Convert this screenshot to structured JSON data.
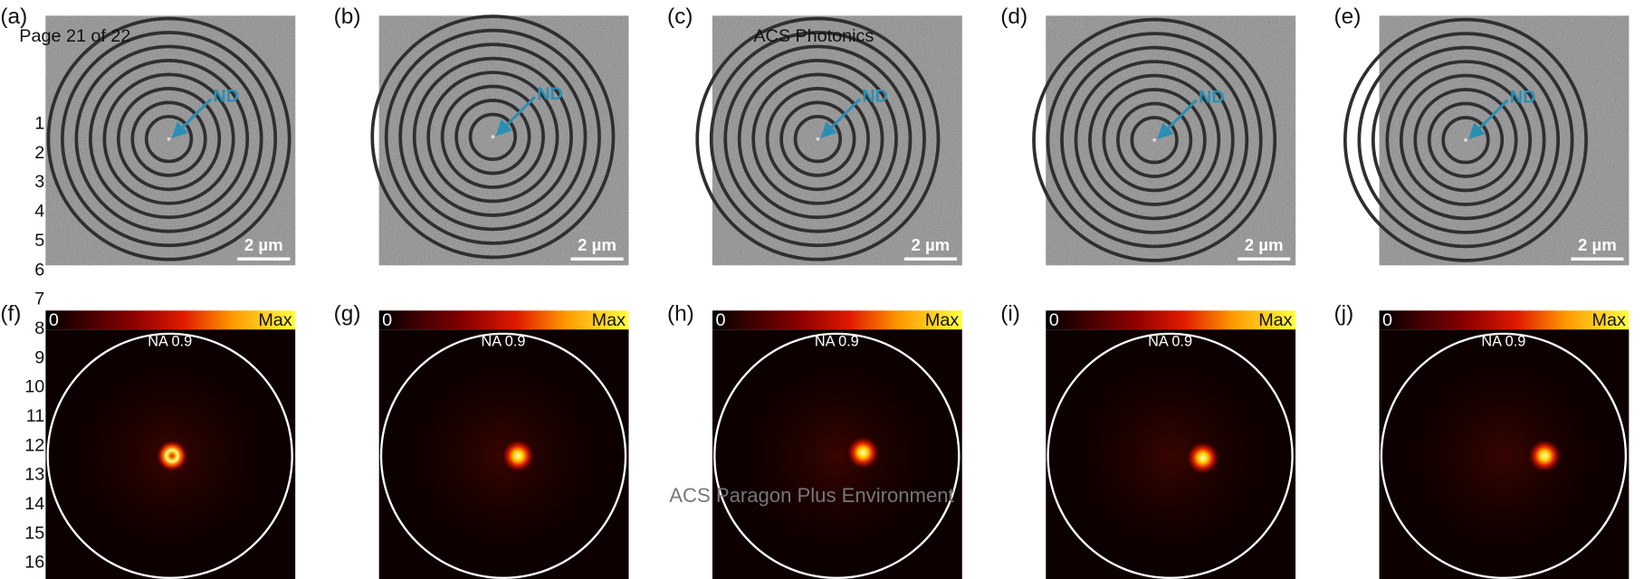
{
  "header": {
    "page": "Page 21 of 22",
    "journal": "ACS Photonics"
  },
  "footer": "ACS Paragon Plus Environment",
  "line_numbers": [
    "1",
    "2",
    "3",
    "4",
    "5",
    "6",
    "7",
    "8",
    "9",
    "10",
    "11",
    "12",
    "13",
    "14",
    "15",
    "16"
  ],
  "top_panels": [
    {
      "label": "(a)",
      "annotation": "ND",
      "scale_bar": "2 µm"
    },
    {
      "label": "(b)",
      "annotation": "ND",
      "scale_bar": "2 µm"
    },
    {
      "label": "(c)",
      "annotation": "ND",
      "scale_bar": "2 µm"
    },
    {
      "label": "(d)",
      "annotation": "ND",
      "scale_bar": "2 µm"
    },
    {
      "label": "(e)",
      "annotation": "ND",
      "scale_bar": "2 µm"
    }
  ],
  "bottom_panels": [
    {
      "label": "(f)",
      "colorbar_min": "0",
      "colorbar_max": "Max",
      "circle_label": "NA 0.9"
    },
    {
      "label": "(g)",
      "colorbar_min": "0",
      "colorbar_max": "Max",
      "circle_label": "NA 0.9"
    },
    {
      "label": "(h)",
      "colorbar_min": "0",
      "colorbar_max": "Max",
      "circle_label": "NA 0.9"
    },
    {
      "label": "(i)",
      "colorbar_min": "0",
      "colorbar_max": "Max",
      "circle_label": "NA 0.9"
    },
    {
      "label": "(j)",
      "colorbar_min": "0",
      "colorbar_max": "Max",
      "circle_label": "NA 0.9"
    }
  ]
}
